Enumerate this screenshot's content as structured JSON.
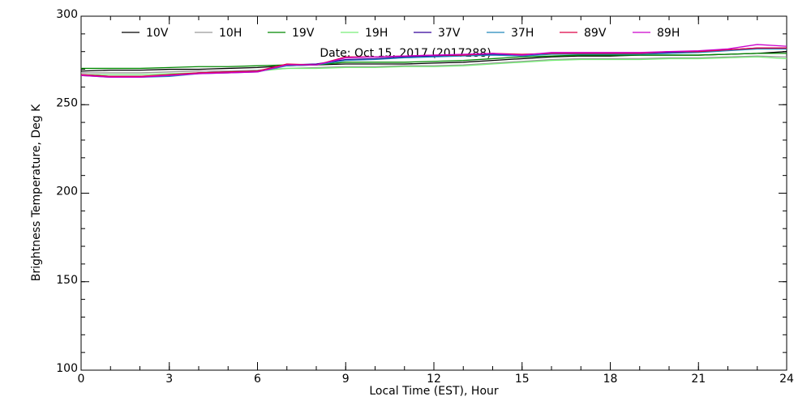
{
  "chart_data": {
    "type": "line",
    "title": "Date: Oct 15, 2017 (2017288)",
    "xlabel": "Local Time (EST), Hour",
    "ylabel": "Brightness Temperature, Deg K",
    "x": [
      0,
      1,
      2,
      3,
      4,
      5,
      6,
      7,
      8,
      9,
      10,
      11,
      12,
      13,
      14,
      15,
      16,
      17,
      18,
      19,
      20,
      21,
      22,
      23,
      24
    ],
    "xlim": [
      0,
      24
    ],
    "xticks": [
      0,
      3,
      6,
      9,
      12,
      15,
      18,
      21,
      24
    ],
    "ylim": [
      100,
      300
    ],
    "yticks": [
      100,
      150,
      200,
      250,
      300
    ],
    "series": [
      {
        "name": "10V",
        "color": "#000000",
        "values": [
          269,
          269.5,
          269.5,
          270,
          270,
          270.5,
          271,
          272,
          272.5,
          273,
          273,
          273,
          273.5,
          274,
          275,
          276,
          277,
          277.5,
          277.5,
          278,
          278,
          278,
          278.5,
          279,
          280
        ]
      },
      {
        "name": "10H",
        "color": "#999999",
        "values": [
          268,
          268,
          268,
          268.5,
          269,
          269,
          269.5,
          270.5,
          271,
          271.5,
          271.5,
          272,
          272,
          272.5,
          273.5,
          274.5,
          275.5,
          276,
          276,
          276,
          276.5,
          276.5,
          277,
          277.5,
          277
        ]
      },
      {
        "name": "19V",
        "color": "#008800",
        "values": [
          270.5,
          270.5,
          270.5,
          271,
          271.5,
          271.5,
          272,
          272.5,
          272.5,
          274,
          274,
          274,
          274.5,
          275,
          276,
          277,
          277.5,
          278,
          278,
          278,
          278,
          278,
          278.5,
          279,
          279
        ]
      },
      {
        "name": "19H",
        "color": "#77ee77",
        "values": [
          267,
          267,
          267,
          267.5,
          268,
          268,
          269,
          270.5,
          270.5,
          271,
          271,
          271.5,
          271.5,
          272,
          273,
          274,
          275,
          275.5,
          275.5,
          275.5,
          276,
          276,
          276.5,
          277,
          276
        ]
      },
      {
        "name": "37V",
        "color": "#330099",
        "values": [
          267,
          266,
          266,
          266.5,
          268,
          268.5,
          269,
          272.5,
          273,
          275.5,
          276,
          277,
          277.5,
          278,
          278.5,
          278,
          279,
          279,
          279,
          279,
          279.5,
          280,
          281,
          282,
          282
        ]
      },
      {
        "name": "37H",
        "color": "#2288bb",
        "values": [
          266.5,
          265.5,
          265.5,
          266,
          267.5,
          268,
          268.5,
          272,
          272.5,
          275,
          275.5,
          276.5,
          277,
          277.5,
          278,
          277.5,
          278.5,
          278.5,
          278.5,
          278.5,
          279,
          279.5,
          280.5,
          281.5,
          281.5
        ]
      },
      {
        "name": "89V",
        "color": "#dd0044",
        "values": [
          267,
          266,
          266,
          267,
          268,
          268.5,
          269,
          273,
          272.5,
          277,
          277,
          277.5,
          278,
          278,
          279,
          278.5,
          279,
          279,
          279,
          279,
          280,
          280,
          281,
          282,
          282
        ]
      },
      {
        "name": "89H",
        "color": "#cc00cc",
        "values": [
          266.5,
          265.5,
          265.5,
          266.5,
          267.5,
          268,
          268.5,
          272.5,
          272.5,
          276.5,
          277,
          277.5,
          278,
          278.5,
          279,
          278,
          279.5,
          279.5,
          279.5,
          279.5,
          280,
          280.5,
          281.5,
          284,
          283
        ]
      }
    ]
  }
}
